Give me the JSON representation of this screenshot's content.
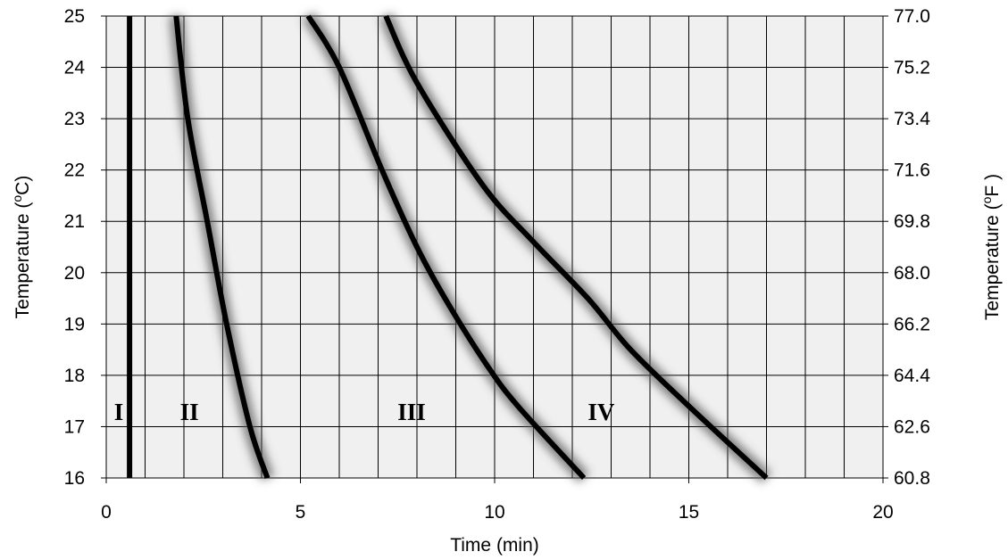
{
  "chart_data": {
    "type": "line",
    "xlabel": "Time (min)",
    "ylabel_left": "Temperature (",
    "ylabel_left_sup": "o",
    "ylabel_left_unit": "C)",
    "ylabel_right": "Temperature (",
    "ylabel_right_sup": "o",
    "ylabel_right_unit": "F )",
    "xlim": [
      0,
      20
    ],
    "ylim": [
      16,
      25
    ],
    "x_major_ticks": [
      "0",
      "5",
      "10",
      "15",
      "20"
    ],
    "x_grid_step": 1,
    "y_ticks_left": [
      "16",
      "17",
      "18",
      "19",
      "20",
      "21",
      "22",
      "23",
      "24",
      "25"
    ],
    "y_ticks_right": [
      "60.8",
      "62.6",
      "64.4",
      "66.2",
      "68.0",
      "69.8",
      "71.6",
      "73.4",
      "75.2",
      "77.0"
    ],
    "grid": true,
    "plot_background": "#f0f0f0",
    "line_color": "#000000",
    "series": [
      {
        "name": "I",
        "label_pos": {
          "x": 0.2,
          "y": 17.3
        },
        "points": [
          [
            0.6,
            16
          ],
          [
            0.6,
            25
          ]
        ]
      },
      {
        "name": "II",
        "label_pos": {
          "x": 1.9,
          "y": 17.3
        },
        "points": [
          [
            1.8,
            25
          ],
          [
            2.1,
            23
          ],
          [
            2.6,
            21
          ],
          [
            3.1,
            19
          ],
          [
            3.7,
            17
          ],
          [
            4.15,
            16
          ]
        ]
      },
      {
        "name": "III",
        "label_pos": {
          "x": 7.5,
          "y": 17.3
        },
        "points": [
          [
            5.2,
            25
          ],
          [
            6.0,
            24
          ],
          [
            7.1,
            22
          ],
          [
            8.0,
            20.5
          ],
          [
            8.8,
            19.4
          ],
          [
            9.8,
            18.2
          ],
          [
            10.6,
            17.4
          ],
          [
            12.3,
            16
          ]
        ]
      },
      {
        "name": "IV",
        "label_pos": {
          "x": 12.4,
          "y": 17.3
        },
        "points": [
          [
            7.2,
            25
          ],
          [
            8.0,
            23.7
          ],
          [
            9.7,
            21.7
          ],
          [
            11.0,
            20.6
          ],
          [
            12.4,
            19.5
          ],
          [
            13.5,
            18.5
          ],
          [
            15.0,
            17.4
          ],
          [
            17.0,
            16
          ]
        ]
      }
    ]
  }
}
